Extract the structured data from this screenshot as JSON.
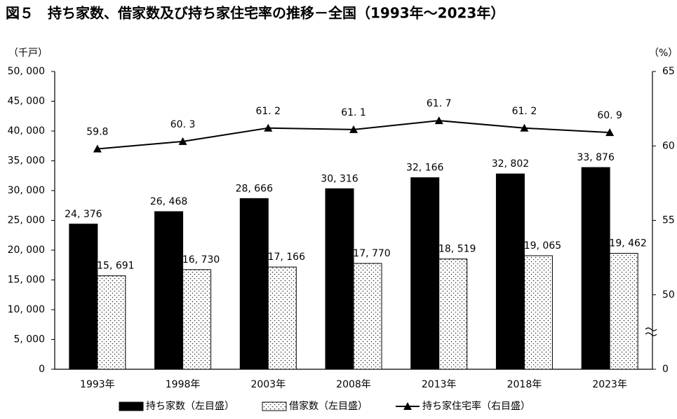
{
  "chart_data": {
    "type": "bar-line",
    "title": "図５　持ち家数、借家数及び持ち家住宅率の推移－全国（1993年～2023年）",
    "y_label": "（千戸）",
    "y2_label": "（%）",
    "categories": [
      "1993年",
      "1998年",
      "2003年",
      "2008年",
      "2013年",
      "2018年",
      "2023年"
    ],
    "ylim": [
      0,
      50000
    ],
    "yticks": [
      {
        "value": 0,
        "label": "0"
      },
      {
        "value": 5000,
        "label": "5, 000"
      },
      {
        "value": 10000,
        "label": "10, 000"
      },
      {
        "value": 15000,
        "label": "15, 000"
      },
      {
        "value": 20000,
        "label": "20, 000"
      },
      {
        "value": 25000,
        "label": "25, 000"
      },
      {
        "value": 30000,
        "label": "30, 000"
      },
      {
        "value": 35000,
        "label": "35, 000"
      },
      {
        "value": 40000,
        "label": "40, 000"
      },
      {
        "value": 45000,
        "label": "45, 000"
      },
      {
        "value": 50000,
        "label": "50, 000"
      }
    ],
    "y2lim": [
      0,
      65
    ],
    "y2ticks": [
      0,
      50,
      55,
      60,
      65
    ],
    "y2_break": [
      0,
      45
    ],
    "series": [
      {
        "name": "持ち家数（左目盛）",
        "type": "bar",
        "color": "#000000",
        "values": [
          24376,
          26468,
          28666,
          30316,
          32166,
          32802,
          33876
        ],
        "value_labels": [
          "24, 376",
          "26, 468",
          "28, 666",
          "30, 316",
          "32, 166",
          "32, 802",
          "33, 876"
        ]
      },
      {
        "name": "借家数（左目盛）",
        "type": "bar",
        "color": "#ffffff",
        "pattern": "dots",
        "values": [
          15691,
          16730,
          17166,
          17770,
          18519,
          19065,
          19462
        ],
        "value_labels": [
          "15, 691",
          "16, 730",
          "17, 166",
          "17, 770",
          "18, 519",
          "19, 065",
          "19, 462"
        ]
      },
      {
        "name": "持ち家住宅率（右目盛）",
        "type": "line",
        "axis": "y2",
        "color": "#000000",
        "marker": "triangle",
        "values": [
          59.8,
          60.3,
          61.2,
          61.1,
          61.7,
          61.2,
          60.9
        ],
        "value_labels": [
          "59.8",
          "60. 3",
          "61. 2",
          "61. 1",
          "61. 7",
          "61. 2",
          "60. 9"
        ]
      }
    ]
  }
}
